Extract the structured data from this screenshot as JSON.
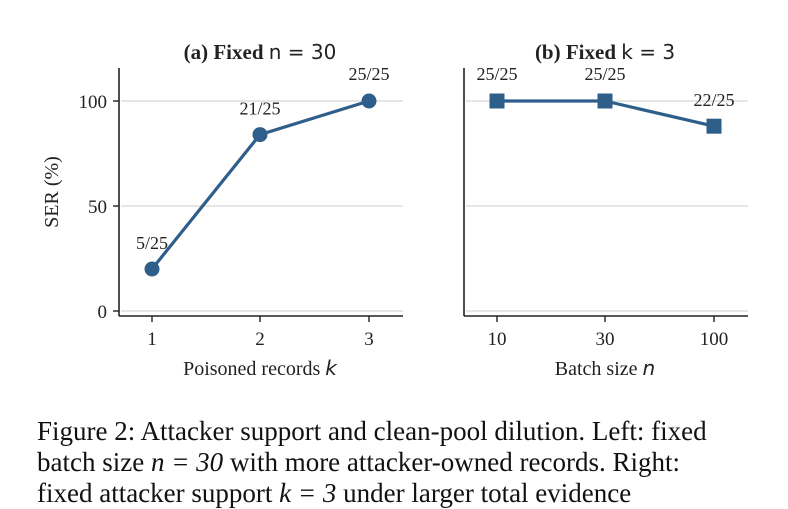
{
  "chart_data": [
    {
      "type": "line",
      "title": "(a) Fixed n = 30",
      "title_bold": "(a) Fixed ",
      "title_math": "n = 30",
      "xlabel": "Poisoned records",
      "xlabel_math": "k",
      "ylabel": "SER (%)",
      "x": [
        1,
        2,
        3
      ],
      "xticks": [
        "1",
        "2",
        "3"
      ],
      "yticks": [
        "0",
        "50",
        "100"
      ],
      "ylim": [
        0,
        100
      ],
      "grid": true,
      "marker": "circle",
      "series": [
        {
          "values": [
            20,
            84,
            100
          ],
          "labels": [
            "5/25",
            "21/25",
            "25/25"
          ]
        }
      ]
    },
    {
      "type": "line",
      "title": "(b) Fixed k = 3",
      "title_bold": "(b) Fixed ",
      "title_math": "k = 3",
      "xlabel": "Batch size",
      "xlabel_math": "n",
      "ylabel": "",
      "x": [
        10,
        30,
        100
      ],
      "xticks": [
        "10",
        "30",
        "100"
      ],
      "ylim": [
        0,
        100
      ],
      "grid": true,
      "marker": "square",
      "series": [
        {
          "values": [
            100,
            100,
            88
          ],
          "labels": [
            "25/25",
            "25/25",
            "22/25"
          ]
        }
      ]
    }
  ],
  "colors": {
    "line": "#2e5f8a",
    "grid": "#dddddd",
    "axis": "#222222"
  },
  "caption": {
    "line1": "Figure 2: Attacker support and clean-pool dilution. Left: fixed",
    "line2a": "batch size ",
    "line2_math": "n = 30",
    "line2b": " with more attacker-owned records. Right:",
    "line3a": "fixed attacker support ",
    "line3_math": "k = 3",
    "line3b": " under larger total evidence"
  }
}
